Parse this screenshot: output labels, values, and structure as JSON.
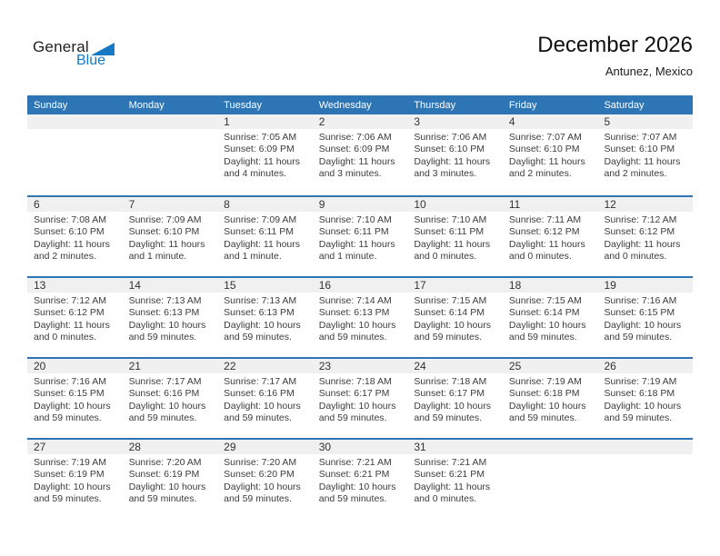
{
  "logo": {
    "word_top": "General",
    "word_bottom": "Blue"
  },
  "header": {
    "title": "December 2026",
    "subtitle": "Antunez, Mexico"
  },
  "labels": {
    "sunrise": "Sunrise:",
    "sunset": "Sunset:",
    "daylight": "Daylight:",
    "conjunction": "and"
  },
  "colors": {
    "header_bg": "#2E75B6",
    "week_divider": "#2E75B6",
    "number_band_bg": "#F0F0F0",
    "brand_blue": "#1779c4"
  },
  "calendar": {
    "weekdays": [
      "Sunday",
      "Monday",
      "Tuesday",
      "Wednesday",
      "Thursday",
      "Friday",
      "Saturday"
    ],
    "weeks": [
      [
        null,
        null,
        {
          "day": "1",
          "sunrise": "7:05 AM",
          "sunset": "6:09 PM",
          "daylight": "11 hours and 4 minutes."
        },
        {
          "day": "2",
          "sunrise": "7:06 AM",
          "sunset": "6:09 PM",
          "daylight": "11 hours and 3 minutes."
        },
        {
          "day": "3",
          "sunrise": "7:06 AM",
          "sunset": "6:10 PM",
          "daylight": "11 hours and 3 minutes."
        },
        {
          "day": "4",
          "sunrise": "7:07 AM",
          "sunset": "6:10 PM",
          "daylight": "11 hours and 2 minutes."
        },
        {
          "day": "5",
          "sunrise": "7:07 AM",
          "sunset": "6:10 PM",
          "daylight": "11 hours and 2 minutes."
        }
      ],
      [
        {
          "day": "6",
          "sunrise": "7:08 AM",
          "sunset": "6:10 PM",
          "daylight": "11 hours and 2 minutes."
        },
        {
          "day": "7",
          "sunrise": "7:09 AM",
          "sunset": "6:10 PM",
          "daylight": "11 hours and 1 minute."
        },
        {
          "day": "8",
          "sunrise": "7:09 AM",
          "sunset": "6:11 PM",
          "daylight": "11 hours and 1 minute."
        },
        {
          "day": "9",
          "sunrise": "7:10 AM",
          "sunset": "6:11 PM",
          "daylight": "11 hours and 1 minute."
        },
        {
          "day": "10",
          "sunrise": "7:10 AM",
          "sunset": "6:11 PM",
          "daylight": "11 hours and 0 minutes."
        },
        {
          "day": "11",
          "sunrise": "7:11 AM",
          "sunset": "6:12 PM",
          "daylight": "11 hours and 0 minutes."
        },
        {
          "day": "12",
          "sunrise": "7:12 AM",
          "sunset": "6:12 PM",
          "daylight": "11 hours and 0 minutes."
        }
      ],
      [
        {
          "day": "13",
          "sunrise": "7:12 AM",
          "sunset": "6:12 PM",
          "daylight": "11 hours and 0 minutes."
        },
        {
          "day": "14",
          "sunrise": "7:13 AM",
          "sunset": "6:13 PM",
          "daylight": "10 hours and 59 minutes."
        },
        {
          "day": "15",
          "sunrise": "7:13 AM",
          "sunset": "6:13 PM",
          "daylight": "10 hours and 59 minutes."
        },
        {
          "day": "16",
          "sunrise": "7:14 AM",
          "sunset": "6:13 PM",
          "daylight": "10 hours and 59 minutes."
        },
        {
          "day": "17",
          "sunrise": "7:15 AM",
          "sunset": "6:14 PM",
          "daylight": "10 hours and 59 minutes."
        },
        {
          "day": "18",
          "sunrise": "7:15 AM",
          "sunset": "6:14 PM",
          "daylight": "10 hours and 59 minutes."
        },
        {
          "day": "19",
          "sunrise": "7:16 AM",
          "sunset": "6:15 PM",
          "daylight": "10 hours and 59 minutes."
        }
      ],
      [
        {
          "day": "20",
          "sunrise": "7:16 AM",
          "sunset": "6:15 PM",
          "daylight": "10 hours and 59 minutes."
        },
        {
          "day": "21",
          "sunrise": "7:17 AM",
          "sunset": "6:16 PM",
          "daylight": "10 hours and 59 minutes."
        },
        {
          "day": "22",
          "sunrise": "7:17 AM",
          "sunset": "6:16 PM",
          "daylight": "10 hours and 59 minutes."
        },
        {
          "day": "23",
          "sunrise": "7:18 AM",
          "sunset": "6:17 PM",
          "daylight": "10 hours and 59 minutes."
        },
        {
          "day": "24",
          "sunrise": "7:18 AM",
          "sunset": "6:17 PM",
          "daylight": "10 hours and 59 minutes."
        },
        {
          "day": "25",
          "sunrise": "7:19 AM",
          "sunset": "6:18 PM",
          "daylight": "10 hours and 59 minutes."
        },
        {
          "day": "26",
          "sunrise": "7:19 AM",
          "sunset": "6:18 PM",
          "daylight": "10 hours and 59 minutes."
        }
      ],
      [
        {
          "day": "27",
          "sunrise": "7:19 AM",
          "sunset": "6:19 PM",
          "daylight": "10 hours and 59 minutes."
        },
        {
          "day": "28",
          "sunrise": "7:20 AM",
          "sunset": "6:19 PM",
          "daylight": "10 hours and 59 minutes."
        },
        {
          "day": "29",
          "sunrise": "7:20 AM",
          "sunset": "6:20 PM",
          "daylight": "10 hours and 59 minutes."
        },
        {
          "day": "30",
          "sunrise": "7:21 AM",
          "sunset": "6:21 PM",
          "daylight": "10 hours and 59 minutes."
        },
        {
          "day": "31",
          "sunrise": "7:21 AM",
          "sunset": "6:21 PM",
          "daylight": "11 hours and 0 minutes."
        },
        null,
        null
      ]
    ]
  }
}
